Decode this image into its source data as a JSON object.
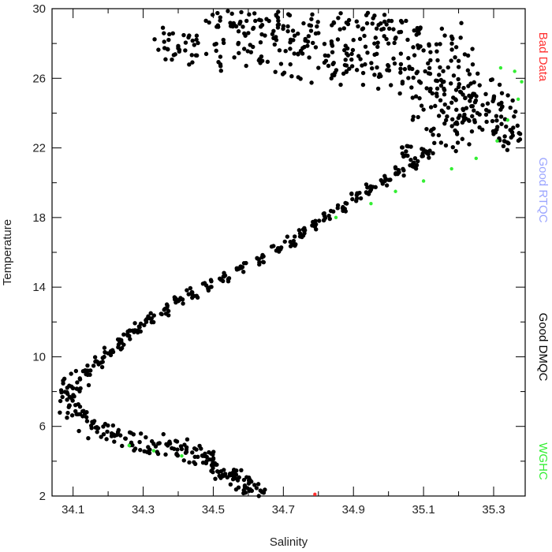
{
  "chart_data": {
    "type": "scatter",
    "xlabel": "Salinity",
    "ylabel": "Temperature",
    "xlim": [
      34.04,
      35.39
    ],
    "ylim": [
      2,
      30
    ],
    "xticks": [
      "34.1",
      "34.3",
      "34.5",
      "34.7",
      "34.9",
      "35.1",
      "35.3"
    ],
    "yticks": [
      "2",
      "6",
      "10",
      "14",
      "18",
      "22",
      "26",
      "30"
    ],
    "legend": [
      {
        "label": "Bad Data",
        "color": "#ff3030"
      },
      {
        "label": "Good RTQC",
        "color": "#9aa4ff"
      },
      {
        "label": "Good DMQC",
        "color": "#000000"
      },
      {
        "label": "WGHC",
        "color": "#33ee33"
      }
    ],
    "series": [
      {
        "name": "Good DMQC",
        "color": "#000000",
        "points": [
          [
            34.63,
            2.0
          ],
          [
            34.61,
            2.3
          ],
          [
            34.59,
            2.6
          ],
          [
            34.57,
            2.9
          ],
          [
            34.55,
            3.2
          ],
          [
            34.53,
            3.5
          ],
          [
            34.51,
            3.8
          ],
          [
            34.49,
            4.1
          ],
          [
            34.47,
            4.3
          ],
          [
            34.44,
            4.5
          ],
          [
            34.41,
            4.7
          ],
          [
            34.37,
            4.9
          ],
          [
            34.33,
            5.0
          ],
          [
            34.29,
            5.1
          ],
          [
            34.25,
            5.3
          ],
          [
            34.21,
            5.6
          ],
          [
            34.17,
            5.9
          ],
          [
            34.14,
            6.3
          ],
          [
            34.11,
            6.7
          ],
          [
            34.09,
            7.2
          ],
          [
            34.09,
            7.7
          ],
          [
            34.1,
            8.2
          ],
          [
            34.12,
            8.7
          ],
          [
            34.14,
            9.2
          ],
          [
            34.17,
            9.7
          ],
          [
            34.2,
            10.2
          ],
          [
            34.23,
            10.7
          ],
          [
            34.26,
            11.2
          ],
          [
            34.29,
            11.7
          ],
          [
            34.32,
            12.2
          ],
          [
            34.36,
            12.7
          ],
          [
            34.4,
            13.2
          ],
          [
            34.44,
            13.7
          ],
          [
            34.48,
            14.1
          ],
          [
            34.53,
            14.6
          ],
          [
            34.58,
            15.1
          ],
          [
            34.63,
            15.6
          ],
          [
            34.68,
            16.1
          ],
          [
            34.72,
            16.6
          ],
          [
            34.76,
            17.1
          ],
          [
            34.79,
            17.6
          ],
          [
            34.83,
            18.1
          ],
          [
            34.87,
            18.6
          ],
          [
            34.91,
            19.1
          ],
          [
            34.95,
            19.6
          ],
          [
            34.99,
            20.1
          ],
          [
            35.03,
            20.6
          ],
          [
            35.07,
            21.1
          ],
          [
            35.11,
            21.7
          ],
          [
            35.15,
            22.3
          ],
          [
            35.19,
            23.0
          ],
          [
            35.22,
            23.7
          ],
          [
            35.24,
            24.4
          ],
          [
            35.23,
            25.0
          ],
          [
            35.2,
            25.5
          ],
          [
            35.15,
            25.9
          ],
          [
            35.08,
            26.3
          ],
          [
            35.0,
            26.7
          ],
          [
            34.92,
            27.1
          ],
          [
            34.84,
            27.5
          ],
          [
            34.76,
            27.8
          ],
          [
            34.68,
            28.2
          ],
          [
            34.6,
            28.6
          ],
          [
            34.55,
            29.0
          ],
          [
            34.52,
            29.5
          ],
          [
            34.4,
            27.8
          ],
          [
            34.42,
            27.6
          ],
          [
            34.36,
            28.1
          ],
          [
            34.48,
            27.4
          ],
          [
            34.56,
            27.2
          ],
          [
            34.64,
            27.0
          ],
          [
            34.72,
            26.8
          ],
          [
            34.8,
            26.6
          ],
          [
            34.88,
            26.4
          ],
          [
            34.96,
            26.2
          ],
          [
            35.04,
            25.8
          ],
          [
            35.12,
            25.4
          ],
          [
            35.3,
            24.8
          ],
          [
            35.32,
            24.2
          ],
          [
            35.28,
            23.5
          ],
          [
            35.3,
            22.8
          ],
          [
            35.35,
            23.0
          ],
          [
            35.35,
            22.6
          ],
          [
            35.18,
            24.6
          ],
          [
            35.26,
            25.6
          ],
          [
            35.1,
            24.2
          ],
          [
            35.16,
            23.4
          ],
          [
            35.05,
            21.8
          ],
          [
            34.62,
            29.3
          ],
          [
            34.7,
            29.0
          ],
          [
            34.8,
            28.6
          ],
          [
            34.9,
            28.2
          ],
          [
            35.0,
            28.0
          ],
          [
            35.1,
            27.6
          ],
          [
            35.2,
            27.0
          ],
          [
            34.58,
            29.8
          ],
          [
            34.68,
            29.6
          ],
          [
            34.78,
            29.4
          ],
          [
            34.88,
            29.2
          ],
          [
            34.98,
            28.8
          ],
          [
            35.08,
            28.5
          ],
          [
            35.18,
            28.4
          ],
          [
            34.96,
            29.6
          ],
          [
            35.05,
            29.3
          ]
        ]
      },
      {
        "name": "WGHC",
        "color": "#33ee33",
        "points": [
          [
            34.26,
            4.9
          ],
          [
            34.33,
            4.6
          ],
          [
            34.41,
            4.3
          ],
          [
            34.85,
            18.0
          ],
          [
            34.95,
            18.8
          ],
          [
            35.02,
            19.5
          ],
          [
            35.1,
            20.1
          ],
          [
            35.18,
            20.8
          ],
          [
            35.25,
            21.4
          ],
          [
            35.31,
            22.4
          ],
          [
            35.34,
            23.6
          ],
          [
            35.37,
            24.8
          ],
          [
            35.38,
            25.8
          ],
          [
            35.36,
            26.4
          ],
          [
            35.32,
            26.6
          ]
        ]
      },
      {
        "name": "Bad Data",
        "color": "#ff3030",
        "points": [
          [
            34.79,
            2.1
          ]
        ]
      }
    ]
  }
}
